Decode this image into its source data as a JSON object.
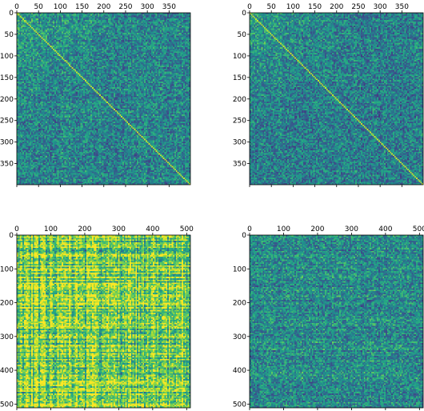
{
  "figure": {
    "layout": "2x2 grid",
    "colormap": "viridis"
  },
  "chart_data": [
    {
      "type": "heatmap",
      "title": "",
      "size": 400,
      "xlim": [
        0,
        399
      ],
      "ylim": [
        399,
        0
      ],
      "xticks": [
        "0",
        "50",
        "100",
        "150",
        "200",
        "250",
        "300",
        "350"
      ],
      "yticks": [
        "0",
        "50",
        "100",
        "150",
        "200",
        "250",
        "300",
        "350"
      ],
      "xaxis_position": "top",
      "grid": false,
      "pattern": "noisy matrix with bright main diagonal, brighter top-left corner",
      "value_range": [
        0,
        1
      ],
      "base_mean": 0.45,
      "diagonal": true
    },
    {
      "type": "heatmap",
      "title": "",
      "size": 400,
      "xlim": [
        0,
        399
      ],
      "ylim": [
        399,
        0
      ],
      "xticks": [
        "0",
        "50",
        "100",
        "150",
        "200",
        "250",
        "300",
        "350"
      ],
      "yticks": [
        "0",
        "50",
        "100",
        "150",
        "200",
        "250",
        "300",
        "350"
      ],
      "xaxis_position": "top",
      "grid": false,
      "pattern": "noisy matrix with bright main diagonal, brighter top-left corner",
      "value_range": [
        0,
        1
      ],
      "base_mean": 0.43,
      "diagonal": true
    },
    {
      "type": "heatmap",
      "title": "",
      "size": 512,
      "xlim": [
        0,
        511
      ],
      "ylim": [
        511,
        0
      ],
      "xticks": [
        "0",
        "100",
        "200",
        "300",
        "400",
        "500"
      ],
      "yticks": [
        "0",
        "100",
        "200",
        "300",
        "400",
        "500"
      ],
      "xaxis_position": "top",
      "grid": false,
      "pattern": "mostly bright yellow-green with vertical and horizontal stripe structure",
      "value_range": [
        0,
        1
      ],
      "base_mean": 0.78,
      "diagonal": false
    },
    {
      "type": "heatmap",
      "title": "",
      "size": 512,
      "xlim": [
        0,
        511
      ],
      "ylim": [
        511,
        0
      ],
      "xticks": [
        "0",
        "100",
        "200",
        "300",
        "400",
        "500"
      ],
      "yticks": [
        "0",
        "100",
        "200",
        "300",
        "400",
        "500"
      ],
      "xaxis_position": "top",
      "grid": false,
      "pattern": "noisy blue-green matrix with faint horizontal stripes",
      "value_range": [
        0,
        1
      ],
      "base_mean": 0.48,
      "diagonal": false
    }
  ]
}
